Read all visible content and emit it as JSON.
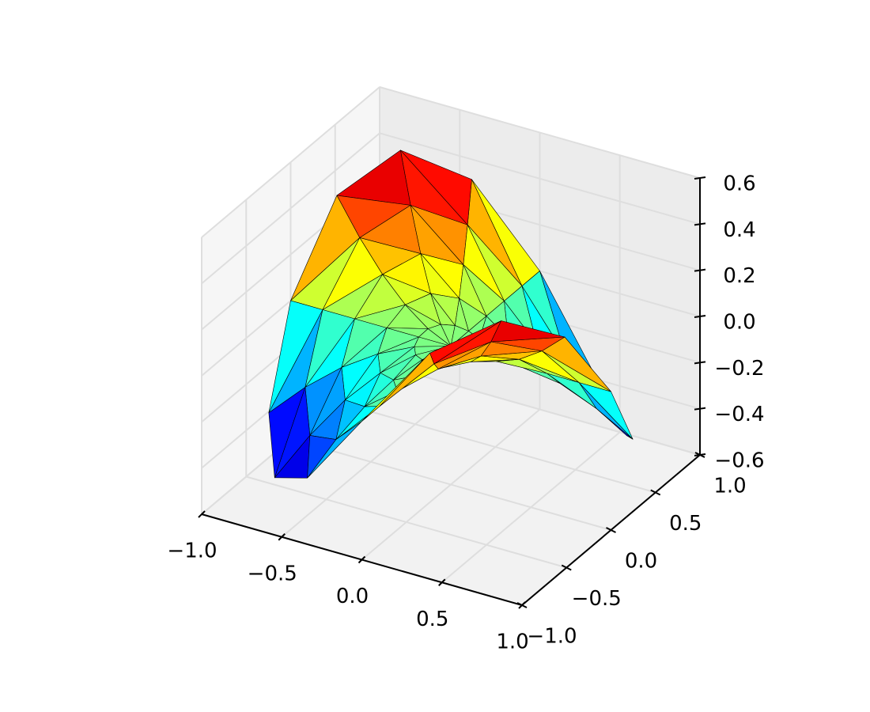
{
  "chart_data": {
    "type": "trisurf3d",
    "colormap": "jet",
    "r": [
      0,
      0.2,
      0.4,
      0.6,
      0.8,
      1.0
    ],
    "theta": [
      0,
      22.5,
      45,
      67.5,
      90,
      112.5,
      135,
      157.5,
      180,
      202.5,
      225,
      247.5,
      270,
      292.5,
      315,
      337.5
    ],
    "z": [
      [
        0,
        0,
        0,
        0,
        0,
        0,
        0,
        0,
        0,
        0,
        0,
        0,
        0,
        0,
        0,
        0
      ],
      [
        0,
        -0.0141,
        -0.02,
        -0.0141,
        0,
        0.0141,
        0.02,
        0.0141,
        0,
        -0.0141,
        -0.02,
        -0.0141,
        0,
        0.0141,
        0.02,
        0.0141
      ],
      [
        0,
        -0.0565,
        -0.0799,
        -0.0565,
        0,
        0.0565,
        0.0799,
        0.0565,
        0,
        -0.0565,
        -0.0799,
        -0.0565,
        0,
        0.0565,
        0.0799,
        0.0565
      ],
      [
        0,
        -0.1269,
        -0.179,
        -0.1269,
        0,
        0.1269,
        0.179,
        0.1269,
        0,
        -0.1269,
        -0.179,
        -0.1269,
        0,
        0.1269,
        0.179,
        0.1269
      ],
      [
        0,
        -0.2244,
        -0.3146,
        -0.2244,
        0,
        0.2244,
        0.3146,
        0.2244,
        0,
        -0.2244,
        -0.3146,
        -0.2244,
        0,
        0.2244,
        0.3146,
        0.2244
      ],
      [
        0,
        -0.3462,
        -0.4794,
        -0.3462,
        0,
        0.3462,
        0.4794,
        0.3462,
        0,
        -0.3462,
        -0.4794,
        -0.3462,
        0,
        0.3462,
        0.4794,
        0.3462
      ]
    ],
    "xlim": [
      -1,
      1
    ],
    "ylim": [
      -1,
      1
    ],
    "zlim": [
      -0.6,
      0.6
    ],
    "xticks": [
      {
        "value": -1,
        "label": "−1.0"
      },
      {
        "value": -0.5,
        "label": "−0.5"
      },
      {
        "value": 0,
        "label": "0.0"
      },
      {
        "value": 0.5,
        "label": "0.5"
      },
      {
        "value": 1,
        "label": "1.0"
      }
    ],
    "yticks": [
      {
        "value": -1,
        "label": "−1.0"
      },
      {
        "value": -0.5,
        "label": "−0.5"
      },
      {
        "value": 0,
        "label": "0.0"
      },
      {
        "value": 0.5,
        "label": "0.5"
      },
      {
        "value": 1,
        "label": "1.0"
      }
    ],
    "zticks": [
      {
        "value": -0.6,
        "label": "−0.6"
      },
      {
        "value": -0.4,
        "label": "−0.4"
      },
      {
        "value": -0.2,
        "label": "−0.2"
      },
      {
        "value": 0,
        "label": "0.0"
      },
      {
        "value": 0.2,
        "label": "0.2"
      },
      {
        "value": 0.4,
        "label": "0.4"
      },
      {
        "value": 0.6,
        "label": "0.6"
      }
    ],
    "grid": true
  }
}
